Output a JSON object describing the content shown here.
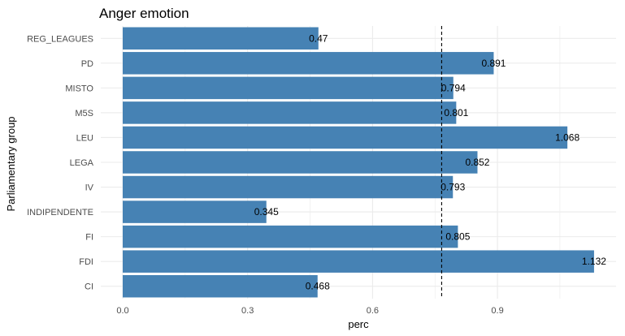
{
  "chart_data": {
    "type": "bar",
    "orientation": "horizontal",
    "title": "Anger emotion",
    "xlabel": "perc",
    "ylabel": "Parliamentary group",
    "categories": [
      "CI",
      "FDI",
      "FI",
      "INDIPENDENTE",
      "IV",
      "LEGA",
      "LEU",
      "M5S",
      "MISTO",
      "PD",
      "REG_LEAGUES"
    ],
    "values": [
      0.468,
      1.132,
      0.805,
      0.345,
      0.793,
      0.852,
      1.068,
      0.801,
      0.794,
      0.891,
      0.47
    ],
    "data_labels": [
      "0.468",
      "1.132",
      "0.805",
      "0.345",
      "0.793",
      "0.852",
      "1.068",
      "0.801",
      "0.794",
      "0.891",
      "0.47"
    ],
    "x_ticks": [
      "0.0",
      "0.3",
      "0.6",
      "0.9"
    ],
    "xlim": [
      0,
      1.19
    ],
    "reference_line": 0.766,
    "grid": true,
    "bar_color": "#4682B4",
    "grid_color": "#EBEBEB"
  }
}
